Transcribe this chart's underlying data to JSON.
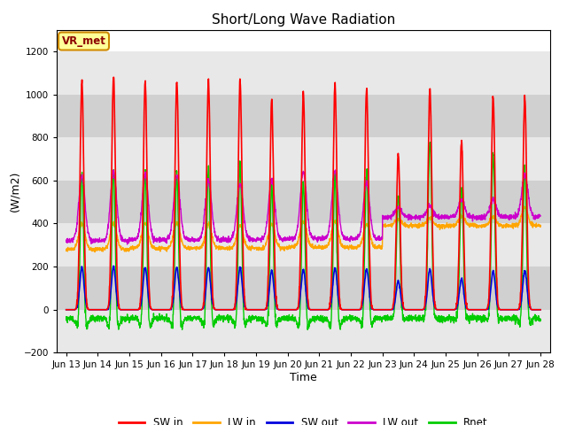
{
  "title": "Short/Long Wave Radiation",
  "xlabel": "Time",
  "ylabel": "(W/m2)",
  "ylim": [
    -200,
    1300
  ],
  "yticks": [
    -200,
    0,
    200,
    400,
    600,
    800,
    1000,
    1200
  ],
  "xtick_labels": [
    "Jun 13",
    "Jun 14",
    "Jun 15",
    "Jun 16",
    "Jun 17",
    "Jun 18",
    "Jun 19",
    "Jun 20",
    "Jun 21",
    "Jun 22",
    "Jun 23",
    "Jun 24",
    "Jun 25",
    "Jun 26",
    "Jun 27",
    "Jun 28"
  ],
  "fig_bg_color": "#ffffff",
  "plot_bg_color": "#ffffff",
  "band_colors": [
    "#e8e8e8",
    "#d0d0d0"
  ],
  "line_colors": {
    "SW_in": "#ff0000",
    "LW_in": "#ffa500",
    "SW_out": "#0000dd",
    "LW_out": "#cc00cc",
    "Rnet": "#00cc00"
  },
  "annotation_text": "VR_met",
  "annotation_bg": "#ffff99",
  "annotation_border": "#cc8800",
  "legend_labels": [
    "SW in",
    "LW in",
    "SW out",
    "LW out",
    "Rnet"
  ],
  "n_days": 15,
  "n_pts_per_day": 144
}
